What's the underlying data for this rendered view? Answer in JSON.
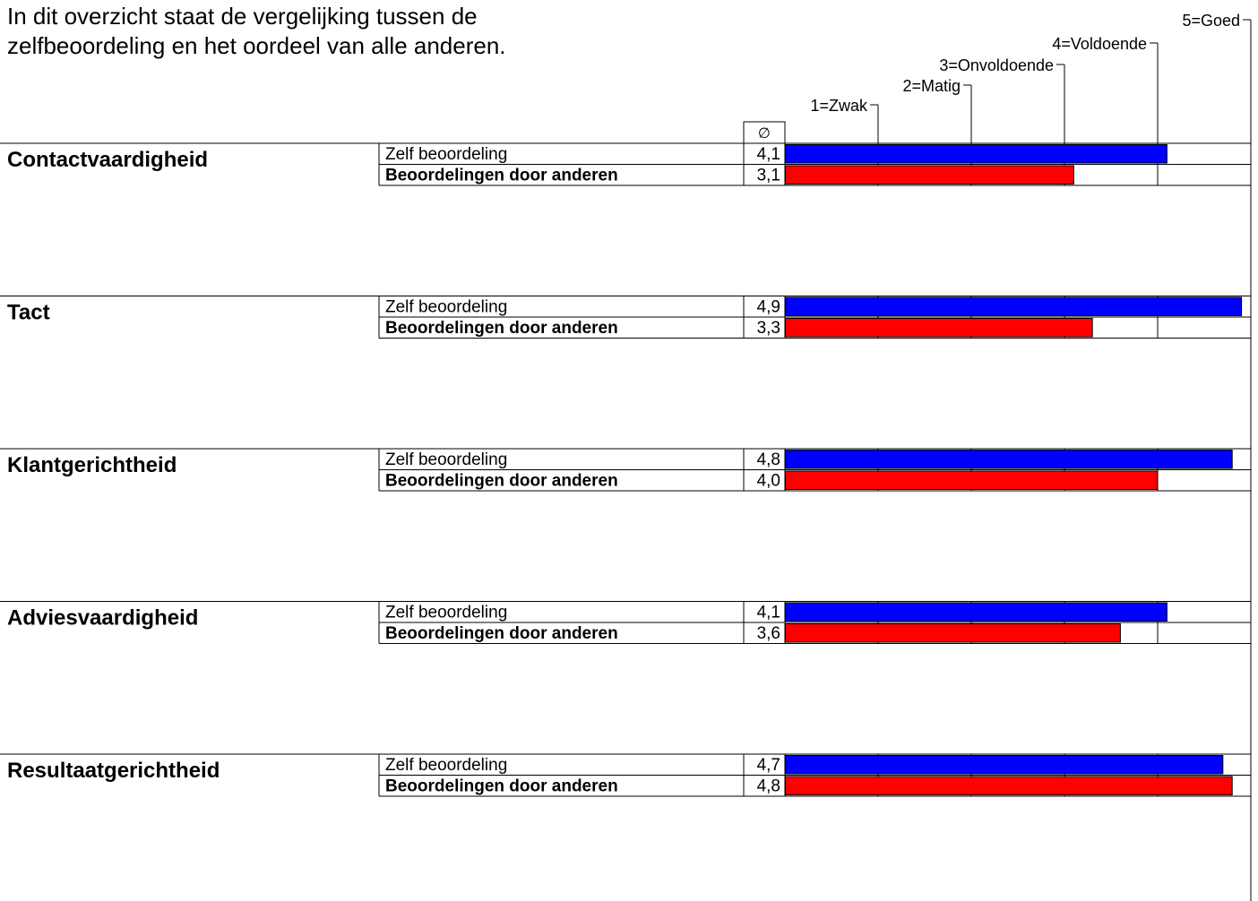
{
  "intro_text": "In dit overzicht staat de vergelijking tussen de zelfbeoordeling en het oordeel van alle anderen.",
  "avg_header_symbol": "∅",
  "colors": {
    "self": "#0000ff",
    "others": "#ff0000"
  },
  "chart_data": {
    "type": "bar",
    "orientation": "horizontal",
    "scale": {
      "min": 0,
      "max": 5,
      "labels": [
        {
          "value": 1,
          "label": "1=Zwak"
        },
        {
          "value": 2,
          "label": "2=Matig"
        },
        {
          "value": 3,
          "label": "3=Onvoldoende"
        },
        {
          "value": 4,
          "label": "4=Voldoende"
        },
        {
          "value": 5,
          "label": "5=Goed"
        }
      ]
    },
    "series_names": [
      "Zelf beoordeling",
      "Beoordelingen door anderen"
    ],
    "categories": [
      {
        "name": "Contactvaardigheid",
        "self": {
          "label": "Zelf beoordeling",
          "value": 4.1,
          "display": "4,1"
        },
        "others": {
          "label": "Beoordelingen door anderen",
          "value": 3.1,
          "display": "3,1"
        }
      },
      {
        "name": "Tact",
        "self": {
          "label": "Zelf beoordeling",
          "value": 4.9,
          "display": "4,9"
        },
        "others": {
          "label": "Beoordelingen door anderen",
          "value": 3.3,
          "display": "3,3"
        }
      },
      {
        "name": "Klantgerichtheid",
        "self": {
          "label": "Zelf beoordeling",
          "value": 4.8,
          "display": "4,8"
        },
        "others": {
          "label": "Beoordelingen door anderen",
          "value": 4.0,
          "display": "4,0"
        }
      },
      {
        "name": "Adviesvaardigheid",
        "self": {
          "label": "Zelf beoordeling",
          "value": 4.1,
          "display": "4,1"
        },
        "others": {
          "label": "Beoordelingen door anderen",
          "value": 3.6,
          "display": "3,6"
        }
      },
      {
        "name": "Resultaatgerichtheid",
        "self": {
          "label": "Zelf beoordeling",
          "value": 4.7,
          "display": "4,7"
        },
        "others": {
          "label": "Beoordelingen door anderen",
          "value": 4.8,
          "display": "4,8"
        }
      }
    ]
  }
}
